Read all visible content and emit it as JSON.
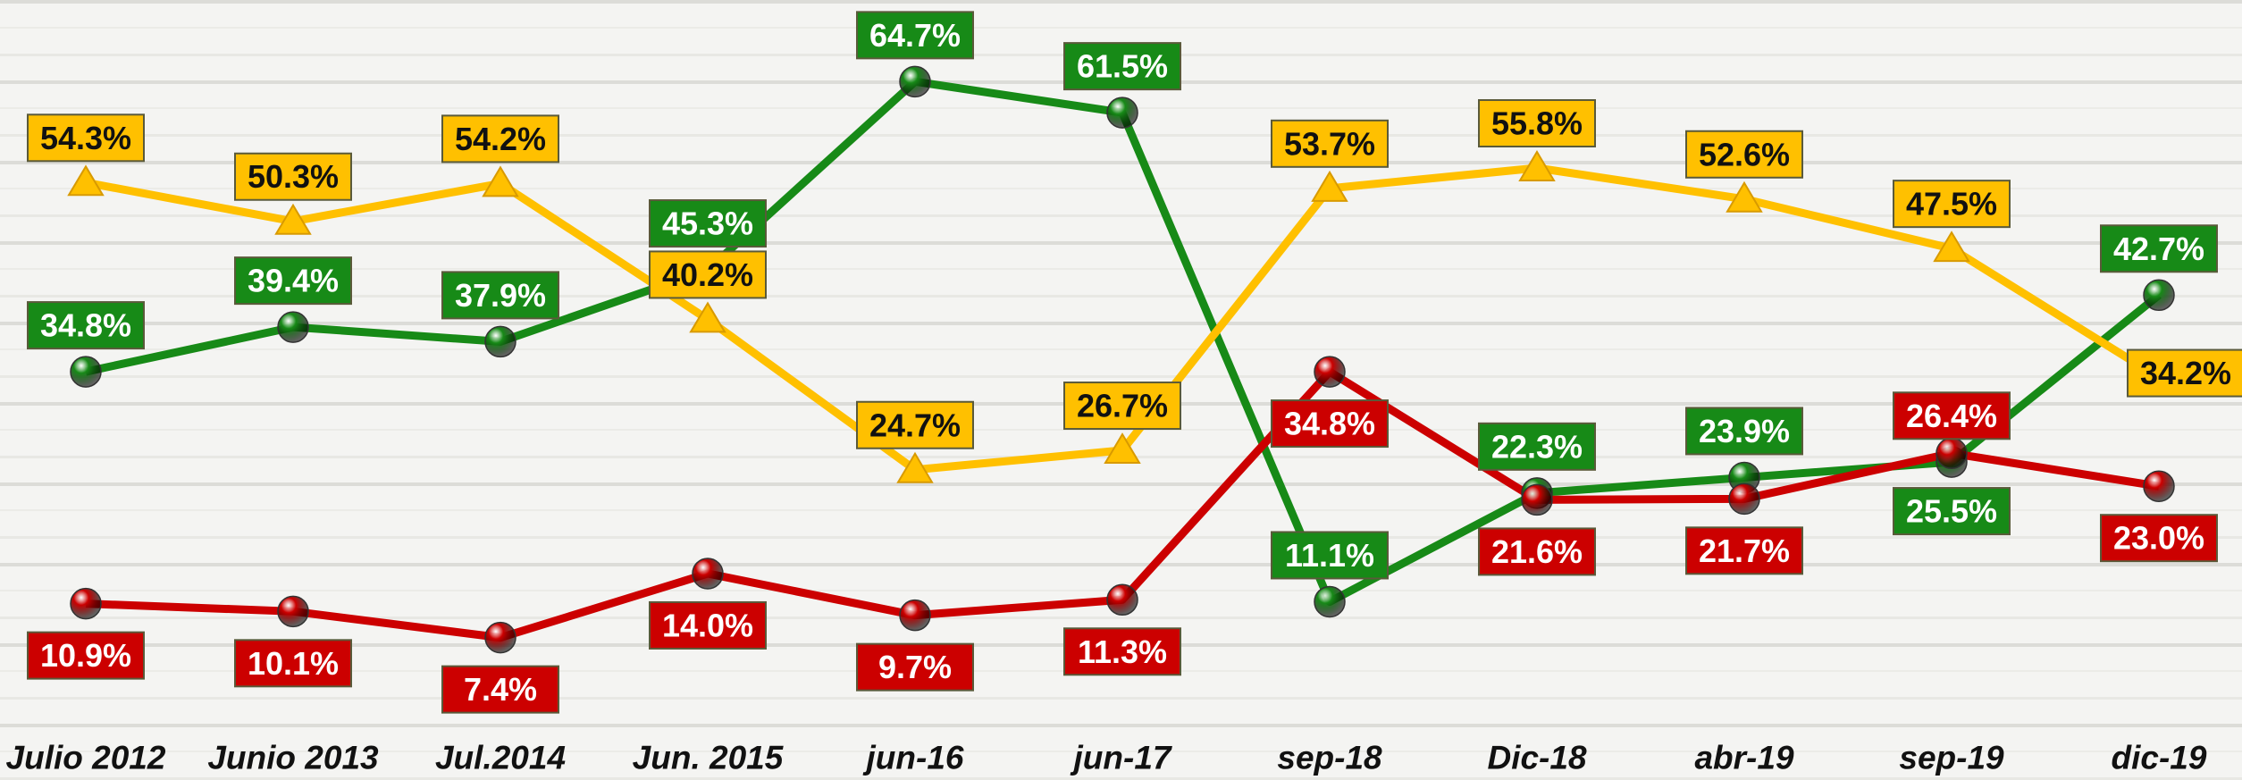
{
  "chart_data": {
    "type": "line",
    "categories": [
      "Julio 2012",
      "Junio 2013",
      "Jul.2014",
      "Jun. 2015",
      "jun-16",
      "jun-17",
      "sep-18",
      "Dic-18",
      "abr-19",
      "sep-19",
      "dic-19"
    ],
    "series": [
      {
        "color": "#178a17",
        "marker": "circle",
        "values": [
          34.8,
          39.4,
          37.9,
          45.3,
          64.7,
          61.5,
          11.1,
          22.3,
          23.9,
          25.5,
          42.7
        ],
        "value_labels": [
          "34.8%",
          "39.4%",
          "37.9%",
          "45.3%",
          "64.7%",
          "61.5%",
          "11.1%",
          "22.3%",
          "23.9%",
          "25.5%",
          "42.7%"
        ]
      },
      {
        "color": "#ffc000",
        "marker": "triangle",
        "values": [
          54.3,
          50.3,
          54.2,
          40.2,
          24.7,
          26.7,
          53.7,
          55.8,
          52.6,
          47.5,
          34.2
        ],
        "value_labels": [
          "54.3%",
          "50.3%",
          "54.2%",
          "40.2%",
          "24.7%",
          "26.7%",
          "53.7%",
          "55.8%",
          "52.6%",
          "47.5%",
          "34.2%"
        ]
      },
      {
        "color": "#cc0000",
        "marker": "circle",
        "values": [
          10.9,
          10.1,
          7.4,
          14.0,
          9.7,
          11.3,
          34.8,
          21.6,
          21.7,
          26.4,
          23.0
        ],
        "value_labels": [
          "10.9%",
          "10.1%",
          "7.4%",
          "14.0%",
          "9.7%",
          "11.3%",
          "34.8%",
          "21.6%",
          "21.7%",
          "26.4%",
          "23.0%"
        ]
      }
    ]
  }
}
